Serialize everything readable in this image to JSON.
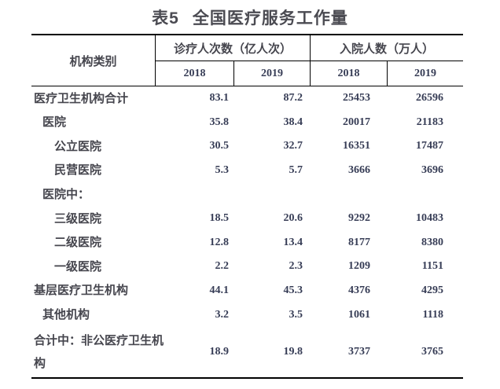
{
  "title": {
    "tag": "表5",
    "text": "全国医疗服务工作量"
  },
  "table": {
    "corner_header": "机构类别",
    "groups": [
      {
        "label": "诊疗人次数（亿人次）",
        "years": [
          "2018",
          "2019"
        ]
      },
      {
        "label": "入院人数（万人）",
        "years": [
          "2018",
          "2019"
        ]
      }
    ],
    "rows": [
      {
        "label": "医疗卫生机构合计",
        "indent": 0,
        "values": [
          "83.1",
          "87.2",
          "25453",
          "26596"
        ]
      },
      {
        "label": "医院",
        "indent": 1,
        "values": [
          "35.8",
          "38.4",
          "20017",
          "21183"
        ]
      },
      {
        "label": "公立医院",
        "indent": 2,
        "values": [
          "30.5",
          "32.7",
          "16351",
          "17487"
        ]
      },
      {
        "label": "民营医院",
        "indent": 2,
        "values": [
          "5.3",
          "5.7",
          "3666",
          "3696"
        ]
      },
      {
        "label": "医院中：",
        "indent": 1,
        "values": [
          "",
          "",
          "",
          ""
        ]
      },
      {
        "label": "三级医院",
        "indent": 2,
        "values": [
          "18.5",
          "20.6",
          "9292",
          "10483"
        ]
      },
      {
        "label": "二级医院",
        "indent": 2,
        "values": [
          "12.8",
          "13.4",
          "8177",
          "8380"
        ]
      },
      {
        "label": "一级医院",
        "indent": 2,
        "values": [
          "2.2",
          "2.3",
          "1209",
          "1151"
        ]
      },
      {
        "label": "基层医疗卫生机构",
        "indent": 0,
        "values": [
          "44.1",
          "45.3",
          "4376",
          "4295"
        ]
      },
      {
        "label": "其他机构",
        "indent": 1,
        "values": [
          "3.2",
          "3.5",
          "1061",
          "1118"
        ]
      },
      {
        "label": "合计中：非公医疗卫生机构",
        "indent": 0,
        "tall": true,
        "values": [
          "18.9",
          "19.8",
          "3737",
          "3765"
        ]
      }
    ]
  },
  "chart_data": {
    "type": "table",
    "title": "表5 全国医疗服务工作量",
    "column_groups": [
      "诊疗人次数（亿人次）",
      "入院人数（万人）"
    ],
    "columns": [
      "机构类别",
      "诊疗人次数2018",
      "诊疗人次数2019",
      "入院人数2018",
      "入院人数2019"
    ],
    "rows": [
      [
        "医疗卫生机构合计",
        83.1,
        87.2,
        25453,
        26596
      ],
      [
        "医院",
        35.8,
        38.4,
        20017,
        21183
      ],
      [
        "公立医院",
        30.5,
        32.7,
        16351,
        17487
      ],
      [
        "民营医院",
        5.3,
        5.7,
        3666,
        3696
      ],
      [
        "医院中：",
        null,
        null,
        null,
        null
      ],
      [
        "三级医院",
        18.5,
        20.6,
        9292,
        10483
      ],
      [
        "二级医院",
        12.8,
        13.4,
        8177,
        8380
      ],
      [
        "一级医院",
        2.2,
        2.3,
        1209,
        1151
      ],
      [
        "基层医疗卫生机构",
        44.1,
        45.3,
        4376,
        4295
      ],
      [
        "其他机构",
        3.2,
        3.5,
        1061,
        1118
      ],
      [
        "合计中：非公医疗卫生机构",
        18.9,
        19.8,
        3737,
        3765
      ]
    ]
  }
}
